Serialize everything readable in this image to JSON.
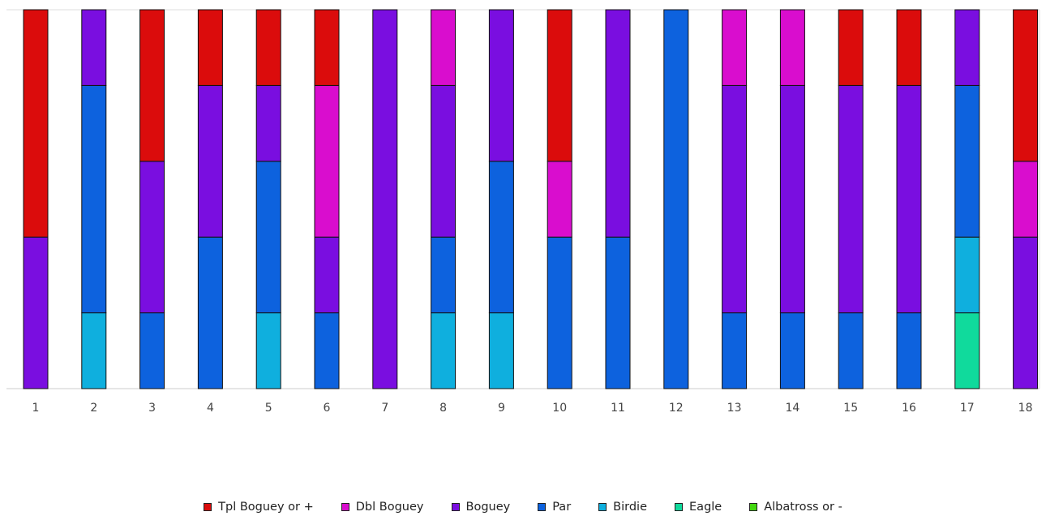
{
  "chart_data": {
    "type": "bar",
    "stacked": true,
    "normalized": true,
    "categories": [
      "1",
      "2",
      "3",
      "4",
      "5",
      "6",
      "7",
      "8",
      "9",
      "10",
      "11",
      "12",
      "13",
      "14",
      "15",
      "16",
      "17",
      "18"
    ],
    "series": [
      {
        "name": "Albatross or -",
        "color": "#44d810",
        "values": [
          0,
          0,
          0,
          0,
          0,
          0,
          0,
          0,
          0,
          0,
          0,
          0,
          0,
          0,
          0,
          0,
          0,
          0
        ]
      },
      {
        "name": "Eagle",
        "color": "#10da9c",
        "values": [
          0,
          0,
          0,
          0,
          0,
          0,
          0,
          0,
          0,
          0,
          0,
          0,
          0,
          0,
          0,
          0,
          1,
          0
        ]
      },
      {
        "name": "Birdie",
        "color": "#0fafde",
        "values": [
          0,
          1,
          0,
          0,
          1,
          0,
          0,
          1,
          1,
          0,
          0,
          0,
          0,
          0,
          0,
          0,
          1,
          0
        ]
      },
      {
        "name": "Par",
        "color": "#0d62de",
        "values": [
          0,
          3,
          1,
          2,
          2,
          1,
          0,
          1,
          2,
          2,
          2,
          5,
          1,
          1,
          1,
          1,
          2,
          0
        ]
      },
      {
        "name": "Boguey",
        "color": "#7a0ee0",
        "values": [
          2,
          1,
          2,
          2,
          1,
          1,
          5,
          2,
          2,
          0,
          3,
          0,
          3,
          3,
          3,
          3,
          1,
          2
        ]
      },
      {
        "name": "Dbl Boguey",
        "color": "#d90dce",
        "values": [
          0,
          0,
          0,
          0,
          0,
          2,
          0,
          1,
          0,
          1,
          0,
          0,
          1,
          1,
          0,
          0,
          0,
          1
        ]
      },
      {
        "name": "Tpl Boguey or +",
        "color": "#db0c0c",
        "values": [
          3,
          0,
          2,
          1,
          1,
          1,
          0,
          0,
          0,
          2,
          0,
          0,
          0,
          0,
          1,
          1,
          0,
          2
        ]
      }
    ],
    "legend": {
      "position": "bottom",
      "order": [
        "Tpl Boguey or +",
        "Dbl Boguey",
        "Boguey",
        "Par",
        "Birdie",
        "Eagle",
        "Albatross or -"
      ]
    },
    "grid": false
  }
}
